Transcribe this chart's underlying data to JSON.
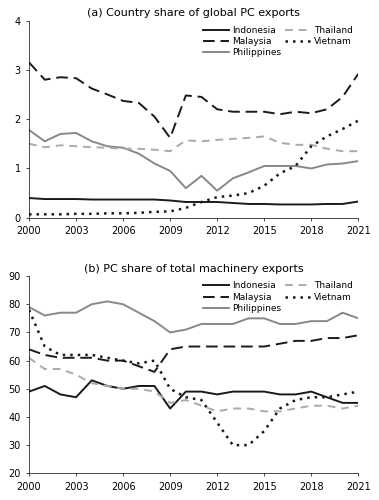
{
  "years": [
    2000,
    2001,
    2002,
    2003,
    2004,
    2005,
    2006,
    2007,
    2008,
    2009,
    2010,
    2011,
    2012,
    2013,
    2014,
    2015,
    2016,
    2017,
    2018,
    2019,
    2020,
    2021
  ],
  "panel_a": {
    "title": "(a) Country share of global PC exports",
    "ylim": [
      0,
      4
    ],
    "yticks": [
      0,
      1,
      2,
      3,
      4
    ],
    "Indonesia": [
      0.4,
      0.38,
      0.38,
      0.38,
      0.37,
      0.37,
      0.37,
      0.37,
      0.37,
      0.35,
      0.32,
      0.32,
      0.32,
      0.3,
      0.28,
      0.28,
      0.27,
      0.27,
      0.27,
      0.28,
      0.28,
      0.33
    ],
    "Malaysia": [
      3.15,
      2.8,
      2.85,
      2.83,
      2.62,
      2.5,
      2.37,
      2.33,
      2.05,
      1.62,
      2.48,
      2.45,
      2.2,
      2.15,
      2.15,
      2.15,
      2.1,
      2.15,
      2.12,
      2.2,
      2.45,
      2.92
    ],
    "Philippines": [
      1.78,
      1.55,
      1.7,
      1.72,
      1.55,
      1.45,
      1.42,
      1.3,
      1.1,
      0.95,
      0.6,
      0.85,
      0.55,
      0.8,
      0.92,
      1.05,
      1.05,
      1.05,
      1.0,
      1.08,
      1.1,
      1.15
    ],
    "Thailand": [
      1.5,
      1.43,
      1.47,
      1.45,
      1.43,
      1.42,
      1.4,
      1.4,
      1.38,
      1.35,
      1.57,
      1.55,
      1.58,
      1.6,
      1.62,
      1.65,
      1.52,
      1.48,
      1.48,
      1.4,
      1.35,
      1.35
    ],
    "Vietnam": [
      0.07,
      0.07,
      0.07,
      0.08,
      0.08,
      0.09,
      0.09,
      0.1,
      0.12,
      0.13,
      0.2,
      0.32,
      0.42,
      0.45,
      0.5,
      0.65,
      0.9,
      1.05,
      1.45,
      1.65,
      1.8,
      1.97
    ]
  },
  "panel_b": {
    "title": "(b) PC share of total machinery exports",
    "ylim": [
      20,
      90
    ],
    "yticks": [
      20,
      30,
      40,
      50,
      60,
      70,
      80,
      90
    ],
    "Indonesia": [
      49,
      51,
      48,
      47,
      53,
      51,
      50,
      51,
      51,
      43,
      49,
      49,
      48,
      49,
      49,
      49,
      48,
      48,
      49,
      47,
      45,
      45
    ],
    "Malaysia": [
      64,
      62,
      61,
      61,
      61,
      60,
      60,
      58,
      56,
      64,
      65,
      65,
      65,
      65,
      65,
      65,
      66,
      67,
      67,
      68,
      68,
      69
    ],
    "Philippines": [
      79,
      76,
      77,
      77,
      80,
      81,
      80,
      77,
      74,
      70,
      71,
      73,
      73,
      73,
      75,
      75,
      73,
      73,
      74,
      74,
      77,
      75
    ],
    "Thailand": [
      61,
      57,
      57,
      55,
      52,
      51,
      50,
      50,
      49,
      45,
      46,
      44,
      42,
      43,
      43,
      42,
      42,
      43,
      44,
      44,
      43,
      44
    ],
    "Vietnam": [
      78,
      65,
      62,
      62,
      62,
      61,
      60,
      59,
      60,
      50,
      47,
      46,
      38,
      30,
      30,
      35,
      43,
      46,
      47,
      47,
      48,
      49
    ]
  },
  "lines": {
    "Indonesia": {
      "color": "#1a1a1a",
      "linestyle": "-",
      "linewidth": 1.4,
      "dashes": null
    },
    "Malaysia": {
      "color": "#1a1a1a",
      "linestyle": "--",
      "linewidth": 1.4,
      "dashes": [
        6,
        3
      ]
    },
    "Philippines": {
      "color": "#888888",
      "linestyle": "-",
      "linewidth": 1.4,
      "dashes": null
    },
    "Thailand": {
      "color": "#aaaaaa",
      "linestyle": "--",
      "linewidth": 1.4,
      "dashes": [
        4,
        3
      ]
    },
    "Vietnam": {
      "color": "#1a1a1a",
      "linestyle": ":",
      "linewidth": 1.8,
      "dashes": [
        1,
        2
      ]
    }
  },
  "legend_row1": [
    "Indonesia",
    "Malaysia"
  ],
  "legend_row2": [
    "Philippines",
    "Thailand"
  ],
  "legend_row3": [
    "Vietnam"
  ],
  "xticks": [
    2000,
    2003,
    2006,
    2009,
    2012,
    2015,
    2018,
    2021
  ]
}
